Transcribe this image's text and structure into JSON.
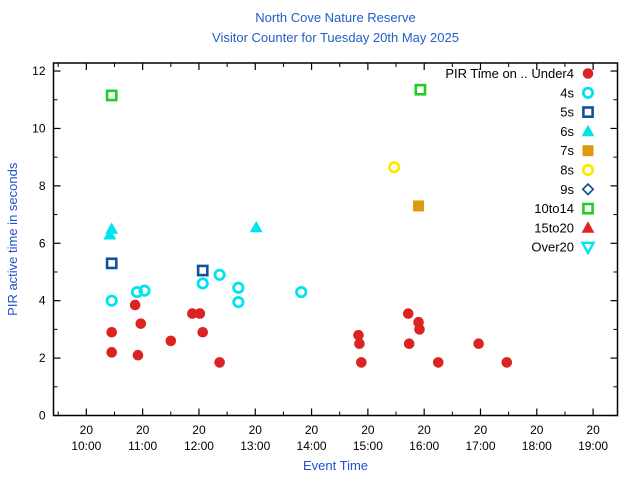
{
  "title": {
    "line1": "North Cove Nature Reserve",
    "line2": "Visitor Counter for Tuesday 20th May 2025"
  },
  "chart_data": {
    "type": "scatter",
    "title": "North Cove Nature Reserve",
    "subtitle": "Visitor Counter for Tuesday 20th May 2025",
    "xlabel": "Event Time",
    "ylabel": "PIR active time in seconds",
    "x_axis": {
      "start": "09:25",
      "end": "19:26",
      "day_label": "20",
      "hour_ticks": [
        "10:00",
        "11:00",
        "12:00",
        "13:00",
        "14:00",
        "15:00",
        "16:00",
        "17:00",
        "18:00",
        "19:00"
      ],
      "minor_tick_minutes": 30
    },
    "y_axis": {
      "min": 0,
      "max": 12.28,
      "major_ticks": [
        0,
        2,
        4,
        6,
        8,
        10,
        12
      ],
      "minor_ticks": [
        1,
        3,
        5,
        7,
        9,
        11
      ]
    },
    "legend": {
      "position": "top-right-inside",
      "header": "PIR Time on .."
    },
    "series": [
      {
        "name": "Under4",
        "legend_label": "PIR Time on .. Under4",
        "marker": "circle-filled",
        "color": "#dd2222",
        "points": [
          [
            "10:27",
            2.9
          ],
          [
            "10:27",
            2.2
          ],
          [
            "10:52",
            3.85
          ],
          [
            "10:55",
            2.1
          ],
          [
            "10:58",
            3.2
          ],
          [
            "11:30",
            2.6
          ],
          [
            "11:53",
            3.55
          ],
          [
            "12:01",
            3.55
          ],
          [
            "12:04",
            2.9
          ],
          [
            "12:22",
            1.85
          ],
          [
            "14:50",
            2.8
          ],
          [
            "14:51",
            2.5
          ],
          [
            "14:53",
            1.85
          ],
          [
            "15:43",
            3.55
          ],
          [
            "15:44",
            2.5
          ],
          [
            "15:54",
            3.25
          ],
          [
            "15:55",
            3.0
          ],
          [
            "16:15",
            1.85
          ],
          [
            "16:58",
            2.5
          ],
          [
            "17:28",
            1.85
          ]
        ]
      },
      {
        "name": "4s",
        "marker": "circle-open",
        "color": "#00e4ee",
        "points": [
          [
            "10:27",
            4.0
          ],
          [
            "10:54",
            4.3
          ],
          [
            "11:02",
            4.35
          ],
          [
            "12:04",
            4.6
          ],
          [
            "12:22",
            4.9
          ],
          [
            "12:42",
            4.45
          ],
          [
            "12:42",
            3.95
          ],
          [
            "13:49",
            4.3
          ]
        ]
      },
      {
        "name": "5s",
        "marker": "square-open",
        "color": "#15509b",
        "points": [
          [
            "10:27",
            5.3
          ],
          [
            "12:04",
            5.05
          ]
        ]
      },
      {
        "name": "6s",
        "marker": "triangle-filled",
        "color": "#00e4ee",
        "points": [
          [
            "10:25",
            6.3
          ],
          [
            "10:27",
            6.5
          ],
          [
            "13:01",
            6.55
          ]
        ]
      },
      {
        "name": "7s",
        "marker": "square-filled",
        "color": "#dd9a10",
        "points": [
          [
            "15:54",
            7.3
          ]
        ]
      },
      {
        "name": "8s",
        "marker": "circle-open",
        "color": "#ffe800",
        "points": [
          [
            "15:28",
            8.65
          ]
        ]
      },
      {
        "name": "9s",
        "marker": "diamond-open",
        "color": "#15509b",
        "points": []
      },
      {
        "name": "10to14",
        "marker": "square-open",
        "color": "#22cc22",
        "points": [
          [
            "10:27",
            11.15
          ],
          [
            "15:56",
            11.35
          ]
        ]
      },
      {
        "name": "15to20",
        "marker": "triangle-filled",
        "color": "#dd2222",
        "points": []
      },
      {
        "name": "Over20",
        "marker": "triangle-down-open",
        "color": "#00e4ee",
        "points": []
      }
    ]
  }
}
